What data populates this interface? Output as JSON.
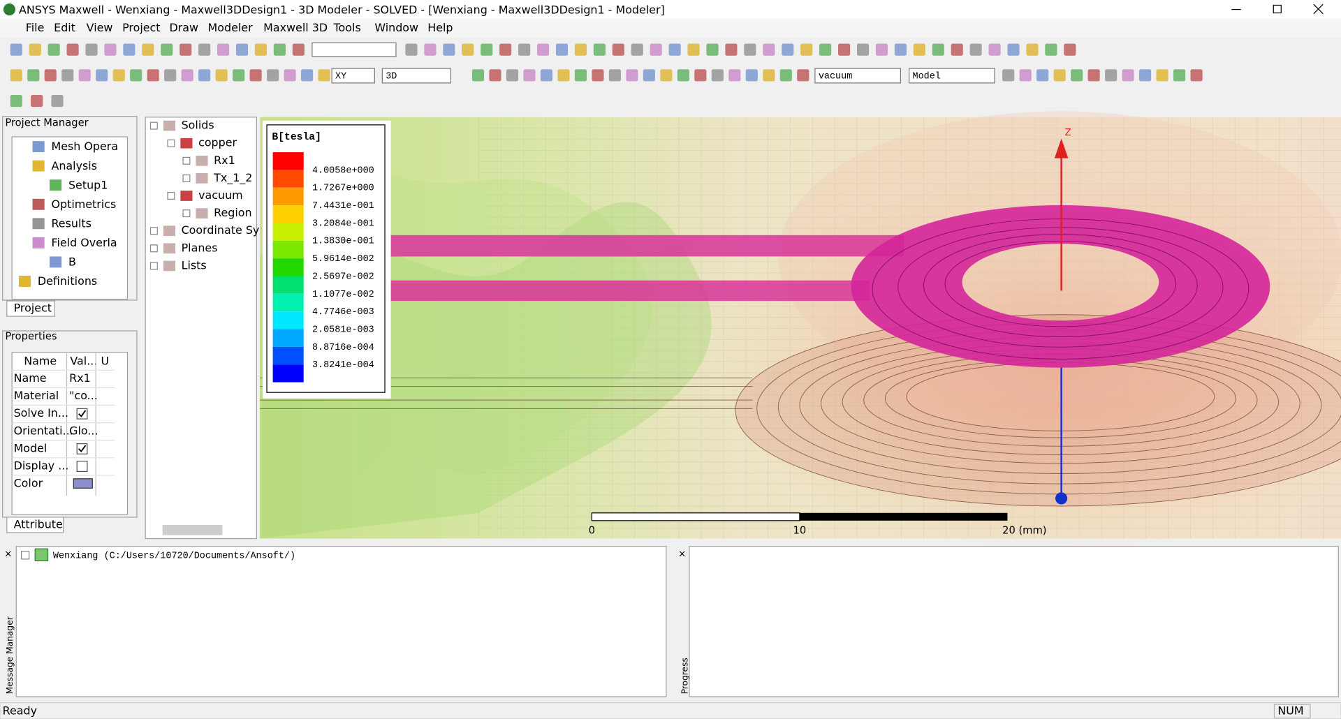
{
  "window": {
    "title": "ANSYS Maxwell - Wenxiang - Maxwell3DDesign1 - 3D Modeler - SOLVED - [Wenxiang - Maxwell3DDesign1 - Modeler]"
  },
  "menu": [
    "File",
    "Edit",
    "View",
    "Project",
    "Draw",
    "Modeler",
    "Maxwell 3D",
    "Tools",
    "Window",
    "Help"
  ],
  "toolbar": {
    "plane": "XY",
    "dimension": "3D",
    "material": "vacuum",
    "model": "Model"
  },
  "project_manager": {
    "title": "Project Manager",
    "items": [
      "Mesh Opera",
      "Analysis",
      "Setup1",
      "Optimetrics",
      "Results",
      "Field Overla",
      "B",
      "Definitions"
    ],
    "tab": "Project"
  },
  "properties": {
    "title": "Properties",
    "headers": [
      "Name",
      "Val...",
      "U"
    ],
    "rows": [
      [
        "Name",
        "Rx1"
      ],
      [
        "Material",
        "\"co..."
      ],
      [
        "Solve In..."
      ],
      [
        "Orientati...",
        "Glo..."
      ],
      [
        "Model"
      ],
      [
        "Display ..."
      ],
      [
        "Color"
      ]
    ],
    "tab": "Attribute"
  },
  "model_tree": [
    "Solids",
    "copper",
    "Rx1",
    "Tx_1_2",
    "vacuum",
    "Region",
    "Coordinate Sy",
    "Planes",
    "Lists"
  ],
  "legend": {
    "title": "B[tesla]",
    "labels": [
      "4.0058e+000",
      "1.7267e+000",
      "7.4431e-001",
      "3.2084e-001",
      "1.3830e-001",
      "5.9614e-002",
      "2.5697e-002",
      "1.1077e-002",
      "4.7746e-003",
      "2.0581e-003",
      "8.8716e-004",
      "3.8241e-004"
    ]
  },
  "viewport": {
    "axis": "Z",
    "ruler": [
      "0",
      "10",
      "20 (mm)"
    ]
  },
  "messages": {
    "side_label": "Message Manager",
    "entry": "Wenxiang (C:/Users/10720/Documents/Ansoft/)"
  },
  "progress": {
    "side_label": "Progress"
  },
  "status": {
    "text": "Ready",
    "num": "NUM"
  }
}
